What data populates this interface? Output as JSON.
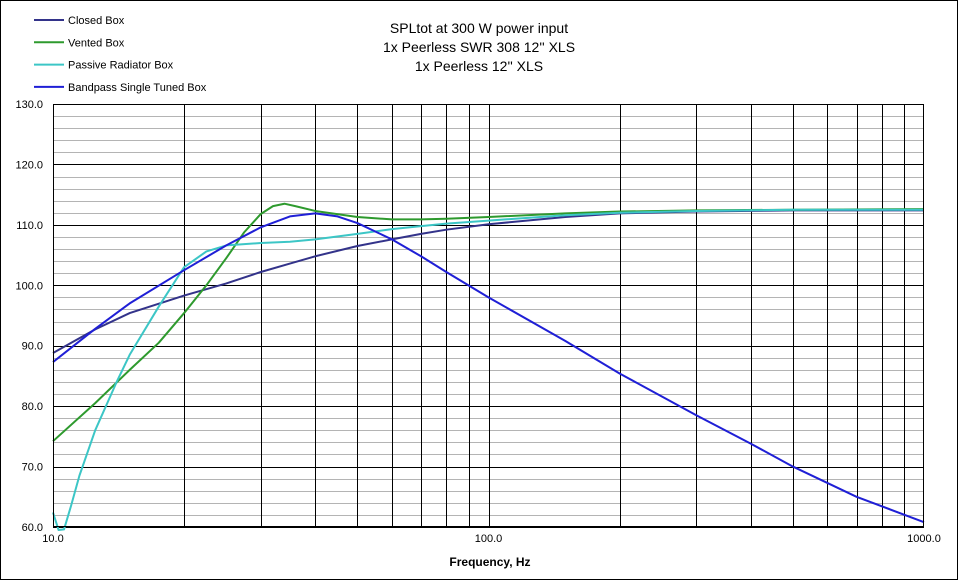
{
  "chart_data": {
    "type": "line",
    "title_lines": [
      "SPLtot at 300 W power input",
      "1x Peerless SWR 308 12'' XLS",
      "1x Peerless 12'' XLS"
    ],
    "xlabel": "Frequency, Hz",
    "ylabel": "",
    "xscale": "log",
    "xlim": [
      10,
      1000
    ],
    "ylim": [
      60,
      130
    ],
    "x_tick_labels": [
      "10.0",
      "100.0",
      "1000.0"
    ],
    "x_tick_values": [
      10,
      100,
      1000
    ],
    "y_tick_labels": [
      "60.0",
      "70.0",
      "80.0",
      "90.0",
      "100.0",
      "110.0",
      "120.0",
      "130.0"
    ],
    "y_tick_values": [
      60,
      70,
      80,
      90,
      100,
      110,
      120,
      130
    ],
    "legend_position": "top-left",
    "series": [
      {
        "name": "Closed Box",
        "color": "#33338a",
        "points": [
          [
            10,
            88.8
          ],
          [
            12.5,
            92.7
          ],
          [
            15,
            95.4
          ],
          [
            20,
            98.3
          ],
          [
            25,
            100.3
          ],
          [
            30,
            102.2
          ],
          [
            35,
            103.6
          ],
          [
            40,
            104.8
          ],
          [
            50,
            106.5
          ],
          [
            60,
            107.6
          ],
          [
            70,
            108.5
          ],
          [
            80,
            109.2
          ],
          [
            100,
            110.1
          ],
          [
            150,
            111.3
          ],
          [
            200,
            111.9
          ],
          [
            300,
            112.2
          ],
          [
            500,
            112.4
          ],
          [
            1000,
            112.4
          ]
        ]
      },
      {
        "name": "Vented Box",
        "color": "#2e9a2e",
        "points": [
          [
            10,
            74.2
          ],
          [
            12.5,
            80.5
          ],
          [
            15,
            86.0
          ],
          [
            17.5,
            90.5
          ],
          [
            20,
            95.4
          ],
          [
            22.5,
            100.0
          ],
          [
            25,
            104.5
          ],
          [
            27.5,
            108.8
          ],
          [
            30,
            111.8
          ],
          [
            32,
            113.1
          ],
          [
            34,
            113.5
          ],
          [
            36,
            113.1
          ],
          [
            40,
            112.3
          ],
          [
            50,
            111.3
          ],
          [
            60,
            110.9
          ],
          [
            70,
            110.9
          ],
          [
            80,
            111.0
          ],
          [
            100,
            111.3
          ],
          [
            150,
            111.9
          ],
          [
            200,
            112.2
          ],
          [
            300,
            112.4
          ],
          [
            500,
            112.5
          ],
          [
            1000,
            112.6
          ]
        ]
      },
      {
        "name": "Passive Radiator Box",
        "color": "#3cc6c6",
        "points": [
          [
            10,
            62.4
          ],
          [
            10.3,
            59.5
          ],
          [
            10.6,
            59.6
          ],
          [
            11,
            63.5
          ],
          [
            11.5,
            68.5
          ],
          [
            12.5,
            76.0
          ],
          [
            14,
            84.0
          ],
          [
            15,
            88.5
          ],
          [
            17.5,
            96.5
          ],
          [
            20,
            103.0
          ],
          [
            22.5,
            105.6
          ],
          [
            25,
            106.6
          ],
          [
            30,
            107.0
          ],
          [
            35,
            107.2
          ],
          [
            40,
            107.6
          ],
          [
            50,
            108.5
          ],
          [
            60,
            109.3
          ],
          [
            70,
            109.8
          ],
          [
            80,
            110.2
          ],
          [
            100,
            110.7
          ],
          [
            150,
            111.6
          ],
          [
            200,
            112.0
          ],
          [
            300,
            112.3
          ],
          [
            500,
            112.5
          ],
          [
            1000,
            112.5
          ]
        ]
      },
      {
        "name": "Bandpass Single Tuned Box",
        "color": "#1f1fd6",
        "points": [
          [
            10,
            87.3
          ],
          [
            12.5,
            92.8
          ],
          [
            15,
            97.0
          ],
          [
            20,
            102.5
          ],
          [
            25,
            106.6
          ],
          [
            30,
            109.6
          ],
          [
            35,
            111.4
          ],
          [
            40,
            111.9
          ],
          [
            45,
            111.4
          ],
          [
            50,
            110.3
          ],
          [
            60,
            107.6
          ],
          [
            70,
            104.8
          ],
          [
            80,
            102.2
          ],
          [
            100,
            98.0
          ],
          [
            150,
            90.8
          ],
          [
            200,
            85.4
          ],
          [
            300,
            78.5
          ],
          [
            400,
            73.8
          ],
          [
            500,
            70.0
          ],
          [
            700,
            65.0
          ],
          [
            1000,
            60.8
          ]
        ]
      }
    ]
  }
}
